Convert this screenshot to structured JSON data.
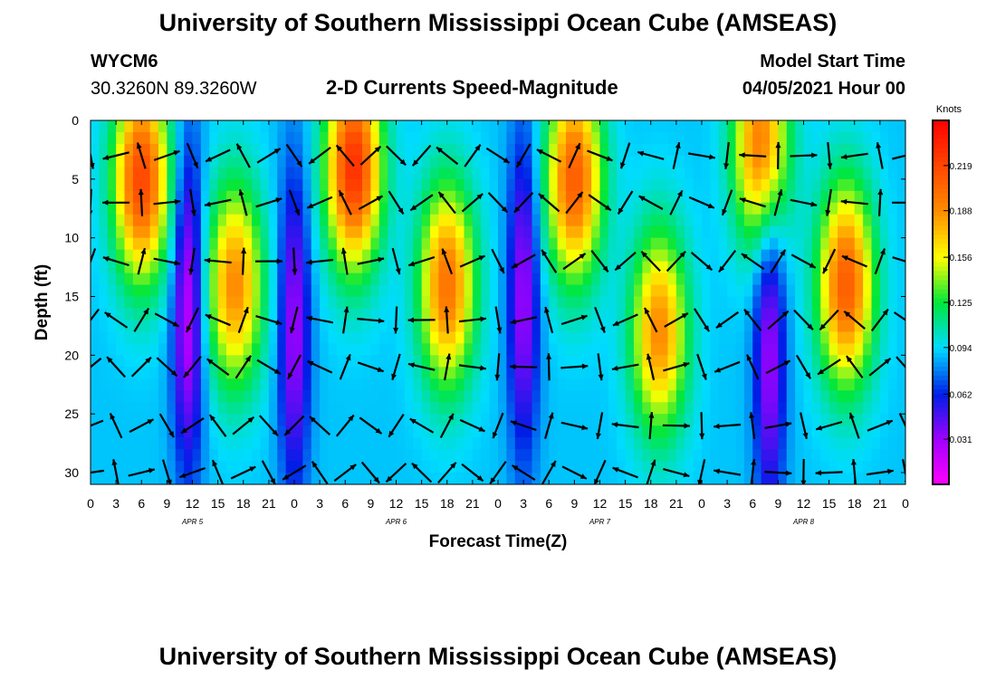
{
  "page_title": "University of Southern Mississippi Ocean Cube (AMSEAS)",
  "footer_title": "University of Southern Mississippi Ocean Cube (AMSEAS)",
  "station": {
    "id": "WYCM6",
    "location": "30.3260N  89.3260W"
  },
  "product_title": "2-D Currents Speed-Magnitude",
  "model_start": {
    "label": "Model Start Time",
    "value": "04/05/2021 Hour 00"
  },
  "chart_data": {
    "type": "heatmap",
    "title": "2-D Currents Speed-Magnitude",
    "xlabel": "Forecast Time(Z)",
    "ylabel": "Depth (ft)",
    "x_range_hours": [
      0,
      96
    ],
    "ylim": [
      0,
      31
    ],
    "y_inverted": true,
    "x_tick_labels": [
      "0",
      "3",
      "6",
      "9",
      "12",
      "15",
      "18",
      "21",
      "0",
      "3",
      "6",
      "9",
      "12",
      "15",
      "18",
      "21",
      "0",
      "3",
      "6",
      "9",
      "12",
      "15",
      "18",
      "21",
      "0",
      "3",
      "6",
      "9",
      "12",
      "15",
      "18",
      "21",
      "0"
    ],
    "y_ticks": [
      0,
      5,
      10,
      15,
      20,
      25,
      30
    ],
    "date_labels": [
      {
        "label": "APR  5",
        "hour": 12
      },
      {
        "label": "APR  6",
        "hour": 36
      },
      {
        "label": "APR  7",
        "hour": 60
      },
      {
        "label": "APR  8",
        "hour": 84
      }
    ],
    "colorbar": {
      "unit": "Knots",
      "range": [
        0.0,
        0.25
      ],
      "tick_values": [
        0.031,
        0.062,
        0.094,
        0.125,
        0.156,
        0.188,
        0.219
      ],
      "tick_labels": [
        "0.031",
        "0.062",
        "0.094",
        "0.125",
        "0.156",
        "0.188",
        "0.219"
      ]
    },
    "speed_peaks_knots": [
      {
        "hour": 6,
        "depth": 5,
        "speed": 0.22
      },
      {
        "hour": 17,
        "depth": 14,
        "speed": 0.19
      },
      {
        "hour": 31,
        "depth": 4,
        "speed": 0.23
      },
      {
        "hour": 42,
        "depth": 14,
        "speed": 0.2
      },
      {
        "hour": 57,
        "depth": 5,
        "speed": 0.21
      },
      {
        "hour": 67,
        "depth": 18,
        "speed": 0.19
      },
      {
        "hour": 79,
        "depth": 2,
        "speed": 0.2
      },
      {
        "hour": 89,
        "depth": 14,
        "speed": 0.21
      }
    ],
    "speed_lows_knots": [
      {
        "hour": 11.5,
        "depth": 16,
        "speed": 0.02
      },
      {
        "hour": 24,
        "depth": 18,
        "speed": 0.03
      },
      {
        "hour": 51,
        "depth": 15,
        "speed": 0.03
      },
      {
        "hour": 80,
        "depth": 20,
        "speed": 0.03
      }
    ],
    "vector_field": {
      "hours": [
        0,
        3,
        6,
        9,
        12,
        15,
        18,
        21,
        24,
        27,
        30,
        33,
        36,
        39,
        42,
        45,
        48,
        51,
        54,
        57,
        60,
        63,
        66,
        69,
        72,
        75,
        78,
        81,
        84,
        87,
        90,
        93,
        96
      ],
      "depths_ft": [
        3,
        7,
        12,
        17,
        21,
        26,
        30
      ],
      "direction_phase": [
        0,
        3,
        6,
        9,
        12,
        15,
        18,
        21,
        24,
        27,
        30,
        33,
        36,
        39,
        42,
        45,
        48,
        51,
        54,
        57,
        60,
        63,
        66,
        69,
        72,
        75,
        78,
        81,
        84,
        87,
        90,
        93,
        96
      ]
    }
  }
}
